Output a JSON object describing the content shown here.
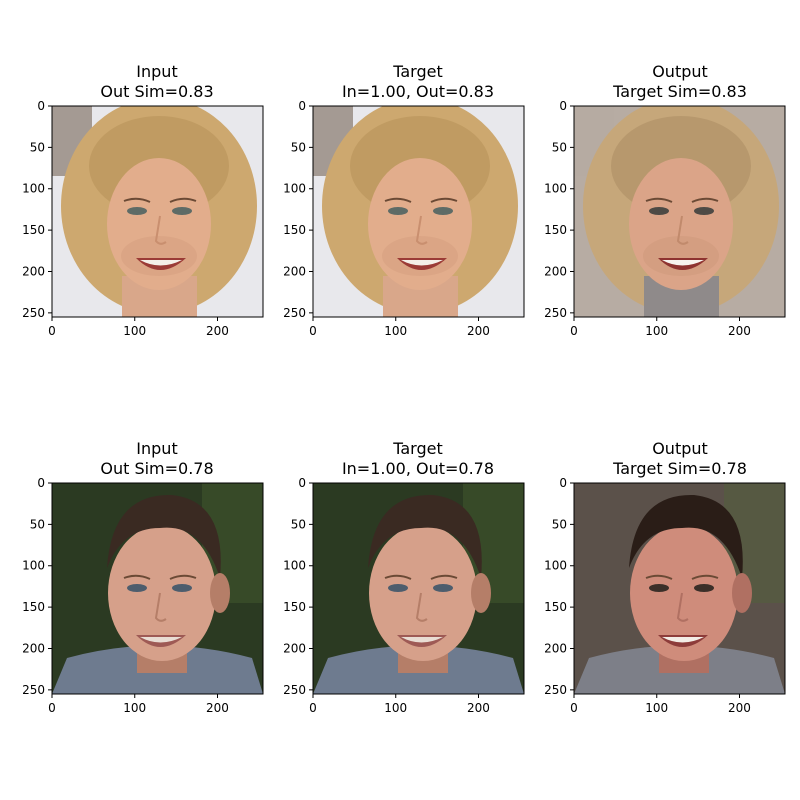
{
  "chart_data": [
    {
      "type": "image",
      "title_lines": [
        "Input",
        "Out Sim=0.83"
      ],
      "xlim": [
        0,
        255
      ],
      "ylim": [
        255,
        0
      ],
      "xticks": [
        0,
        100,
        200
      ],
      "yticks": [
        0,
        50,
        100,
        150,
        200,
        250
      ],
      "image": "face photo: woman with curly blonde hair smiling",
      "palette": {
        "bg": "#e8e8ec",
        "hair": "#cda86f",
        "hair_dark": "#a9834b",
        "skin": "#e2ad8c",
        "skin_shade": "#c98f6f",
        "mouth": "#9b3b36",
        "teeth": "#f4efe8",
        "eye": "#5e6b66",
        "shirt": "#d9a78a",
        "extra": "#6b5a4a"
      }
    },
    {
      "type": "image",
      "title_lines": [
        "Target",
        "In=1.00, Out=0.83"
      ],
      "xlim": [
        0,
        255
      ],
      "ylim": [
        255,
        0
      ],
      "xticks": [
        0,
        100,
        200
      ],
      "yticks": [
        0,
        50,
        100,
        150,
        200,
        250
      ],
      "image": "face photo: woman with curly blonde hair smiling",
      "palette": {
        "bg": "#e8e8ec",
        "hair": "#cda86f",
        "hair_dark": "#a9834b",
        "skin": "#e2ad8c",
        "skin_shade": "#c98f6f",
        "mouth": "#9b3b36",
        "teeth": "#f4efe8",
        "eye": "#5e6b66",
        "shirt": "#d9a78a",
        "extra": "#6b5a4a"
      }
    },
    {
      "type": "image",
      "title_lines": [
        "Output",
        "Target Sim=0.83"
      ],
      "xlim": [
        0,
        255
      ],
      "ylim": [
        255,
        0
      ],
      "xticks": [
        0,
        100,
        200
      ],
      "yticks": [
        0,
        50,
        100,
        150,
        200,
        250
      ],
      "image": "generated face: woman with wavy blonde hair smiling",
      "palette": {
        "bg": "#b7aca3",
        "hair": "#c6a77a",
        "hair_dark": "#9c7d55",
        "skin": "#dba488",
        "skin_shade": "#c18a6c",
        "mouth": "#8e3330",
        "teeth": "#f7f3ee",
        "eye": "#4e4a45",
        "shirt": "#8f8a8a",
        "extra": "#b7aca3"
      }
    },
    {
      "type": "image",
      "title_lines": [
        "Input",
        "Out Sim=0.78"
      ],
      "xlim": [
        0,
        255
      ],
      "ylim": [
        255,
        0
      ],
      "xticks": [
        0,
        100,
        200
      ],
      "yticks": [
        0,
        50,
        100,
        150,
        200,
        250
      ],
      "image": "face photo: man with short dark hair, plaid shirt",
      "palette": {
        "bg": "#2b3a22",
        "hair": "#3a2a22",
        "hair_dark": "#24180f",
        "skin": "#d6a08a",
        "skin_shade": "#b57e68",
        "mouth": "#9e5a55",
        "teeth": "#e9ddd4",
        "eye": "#4d5d6d",
        "shirt": "#6e7b8f",
        "extra": "#b18a6f"
      }
    },
    {
      "type": "image",
      "title_lines": [
        "Target",
        "In=1.00, Out=0.78"
      ],
      "xlim": [
        0,
        255
      ],
      "ylim": [
        255,
        0
      ],
      "xticks": [
        0,
        100,
        200
      ],
      "yticks": [
        0,
        50,
        100,
        150,
        200,
        250
      ],
      "image": "face photo: man with short dark hair, plaid shirt",
      "palette": {
        "bg": "#2b3a22",
        "hair": "#3a2a22",
        "hair_dark": "#24180f",
        "skin": "#d6a08a",
        "skin_shade": "#b57e68",
        "mouth": "#9e5a55",
        "teeth": "#e9ddd4",
        "eye": "#4d5d6d",
        "shirt": "#6e7b8f",
        "extra": "#b18a6f"
      }
    },
    {
      "type": "image",
      "title_lines": [
        "Output",
        "Target Sim=0.78"
      ],
      "xlim": [
        0,
        255
      ],
      "ylim": [
        255,
        0
      ],
      "xticks": [
        0,
        100,
        200
      ],
      "yticks": [
        0,
        50,
        100,
        150,
        200,
        250
      ],
      "image": "generated face: man with short dark hair smiling",
      "palette": {
        "bg": "#5b514a",
        "hair": "#2a1d17",
        "hair_dark": "#1a110c",
        "skin": "#cf8c7b",
        "skin_shade": "#b07062",
        "mouth": "#8d3c3a",
        "teeth": "#f3ede6",
        "eye": "#3b2f29",
        "shirt": "#7d7f88",
        "extra": "#5b514a"
      }
    }
  ]
}
